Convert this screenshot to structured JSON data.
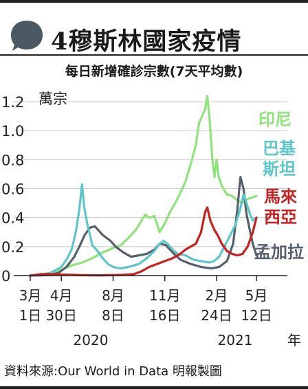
{
  "header": {
    "title": "4穆斯林國家疫情",
    "subtitle": "每日新增確診宗數(7天平均數)",
    "source": "資料來源:Our World in Data 明報製圖"
  },
  "colors": {
    "indonesia": "#8fe37c",
    "pakistan": "#5ec6c8",
    "malaysia": "#c81f1f",
    "bangladesh": "#55606b",
    "bubble": "#4b5963"
  },
  "chart_data": {
    "type": "line",
    "unit_label": "萬宗",
    "y_ticks": [
      "1.2",
      "1.0",
      "0.8",
      "0.6",
      "0.4",
      "0.2",
      "0"
    ],
    "ylim": [
      0,
      1.25
    ],
    "x_ticks": [
      {
        "top": "3月",
        "bottom": "1日",
        "t": 0
      },
      {
        "top": "4月",
        "bottom": "30日",
        "t": 60
      },
      {
        "top": "8月",
        "bottom": "8日",
        "t": 160
      },
      {
        "top": "11月",
        "bottom": "16日",
        "t": 260
      },
      {
        "top": "2月",
        "bottom": "24日",
        "t": 360
      },
      {
        "top": "5月",
        "bottom": "12日",
        "t": 437
      }
    ],
    "years": [
      "2020",
      "2021",
      "年"
    ],
    "xlim": [
      0,
      437
    ],
    "series": [
      {
        "key": "indonesia",
        "name": "印尼",
        "points": [
          [
            0,
            0
          ],
          [
            20,
            0.005
          ],
          [
            40,
            0.02
          ],
          [
            60,
            0.04
          ],
          [
            80,
            0.07
          ],
          [
            100,
            0.09
          ],
          [
            120,
            0.12
          ],
          [
            140,
            0.16
          ],
          [
            160,
            0.19
          ],
          [
            175,
            0.21
          ],
          [
            190,
            0.26
          ],
          [
            205,
            0.32
          ],
          [
            215,
            0.38
          ],
          [
            222,
            0.42
          ],
          [
            230,
            0.4
          ],
          [
            240,
            0.41
          ],
          [
            250,
            0.3
          ],
          [
            260,
            0.36
          ],
          [
            270,
            0.44
          ],
          [
            280,
            0.5
          ],
          [
            290,
            0.57
          ],
          [
            300,
            0.65
          ],
          [
            310,
            0.77
          ],
          [
            320,
            0.9
          ],
          [
            326,
            1.05
          ],
          [
            332,
            1.1
          ],
          [
            338,
            1.15
          ],
          [
            342,
            1.24
          ],
          [
            346,
            1.1
          ],
          [
            352,
            0.8
          ],
          [
            356,
            0.68
          ],
          [
            360,
            0.8
          ],
          [
            364,
            0.68
          ],
          [
            370,
            0.62
          ],
          [
            380,
            0.56
          ],
          [
            390,
            0.55
          ],
          [
            400,
            0.52
          ],
          [
            410,
            0.5
          ],
          [
            420,
            0.53
          ],
          [
            430,
            0.54
          ],
          [
            437,
            0.55
          ]
        ]
      },
      {
        "key": "pakistan",
        "name": "巴基斯坦",
        "points": [
          [
            0,
            0
          ],
          [
            20,
            0.005
          ],
          [
            40,
            0.02
          ],
          [
            60,
            0.06
          ],
          [
            70,
            0.11
          ],
          [
            80,
            0.18
          ],
          [
            88,
            0.3
          ],
          [
            95,
            0.46
          ],
          [
            100,
            0.63
          ],
          [
            104,
            0.48
          ],
          [
            110,
            0.36
          ],
          [
            120,
            0.21
          ],
          [
            130,
            0.17
          ],
          [
            140,
            0.12
          ],
          [
            150,
            0.08
          ],
          [
            160,
            0.06
          ],
          [
            175,
            0.05
          ],
          [
            190,
            0.06
          ],
          [
            210,
            0.08
          ],
          [
            225,
            0.12
          ],
          [
            240,
            0.17
          ],
          [
            250,
            0.22
          ],
          [
            258,
            0.24
          ],
          [
            265,
            0.22
          ],
          [
            275,
            0.18
          ],
          [
            285,
            0.15
          ],
          [
            300,
            0.14
          ],
          [
            315,
            0.11
          ],
          [
            330,
            0.1
          ],
          [
            345,
            0.09
          ],
          [
            355,
            0.1
          ],
          [
            365,
            0.13
          ],
          [
            375,
            0.2
          ],
          [
            385,
            0.27
          ],
          [
            395,
            0.34
          ],
          [
            405,
            0.45
          ],
          [
            412,
            0.56
          ],
          [
            418,
            0.5
          ],
          [
            425,
            0.42
          ],
          [
            430,
            0.38
          ],
          [
            437,
            0.4
          ]
        ]
      },
      {
        "key": "malaysia",
        "name": "馬來西亞",
        "points": [
          [
            0,
            0
          ],
          [
            20,
            0.01
          ],
          [
            40,
            0.01
          ],
          [
            60,
            0.008
          ],
          [
            80,
            0.005
          ],
          [
            100,
            0.003
          ],
          [
            120,
            0.002
          ],
          [
            140,
            0.002
          ],
          [
            160,
            0.003
          ],
          [
            180,
            0.005
          ],
          [
            200,
            0.01
          ],
          [
            215,
            0.03
          ],
          [
            230,
            0.06
          ],
          [
            245,
            0.08
          ],
          [
            260,
            0.1
          ],
          [
            275,
            0.12
          ],
          [
            290,
            0.15
          ],
          [
            300,
            0.18
          ],
          [
            310,
            0.2
          ],
          [
            320,
            0.22
          ],
          [
            330,
            0.3
          ],
          [
            338,
            0.44
          ],
          [
            342,
            0.47
          ],
          [
            348,
            0.38
          ],
          [
            355,
            0.32
          ],
          [
            362,
            0.28
          ],
          [
            370,
            0.22
          ],
          [
            380,
            0.17
          ],
          [
            390,
            0.15
          ],
          [
            400,
            0.14
          ],
          [
            410,
            0.15
          ],
          [
            420,
            0.2
          ],
          [
            430,
            0.3
          ],
          [
            437,
            0.4
          ]
        ]
      },
      {
        "key": "bangladesh",
        "name": "孟加拉",
        "points": [
          [
            0,
            0
          ],
          [
            20,
            0.002
          ],
          [
            40,
            0.005
          ],
          [
            55,
            0.02
          ],
          [
            70,
            0.06
          ],
          [
            85,
            0.13
          ],
          [
            95,
            0.2
          ],
          [
            105,
            0.28
          ],
          [
            115,
            0.33
          ],
          [
            125,
            0.34
          ],
          [
            140,
            0.28
          ],
          [
            155,
            0.24
          ],
          [
            165,
            0.2
          ],
          [
            180,
            0.16
          ],
          [
            195,
            0.13
          ],
          [
            210,
            0.14
          ],
          [
            225,
            0.15
          ],
          [
            240,
            0.18
          ],
          [
            250,
            0.22
          ],
          [
            262,
            0.21
          ],
          [
            275,
            0.16
          ],
          [
            290,
            0.11
          ],
          [
            310,
            0.08
          ],
          [
            330,
            0.06
          ],
          [
            350,
            0.05
          ],
          [
            365,
            0.06
          ],
          [
            380,
            0.1
          ],
          [
            392,
            0.22
          ],
          [
            400,
            0.45
          ],
          [
            406,
            0.68
          ],
          [
            412,
            0.6
          ],
          [
            418,
            0.42
          ],
          [
            425,
            0.3
          ],
          [
            430,
            0.22
          ],
          [
            437,
            0.14
          ]
        ]
      }
    ],
    "labels": [
      {
        "key": "indonesia",
        "lines": [
          "印尼"
        ]
      },
      {
        "key": "pakistan",
        "lines": [
          "巴基",
          "斯坦"
        ]
      },
      {
        "key": "malaysia",
        "lines": [
          "馬來",
          "西亞"
        ]
      },
      {
        "key": "bangladesh",
        "lines": [
          "孟加拉"
        ]
      }
    ]
  }
}
